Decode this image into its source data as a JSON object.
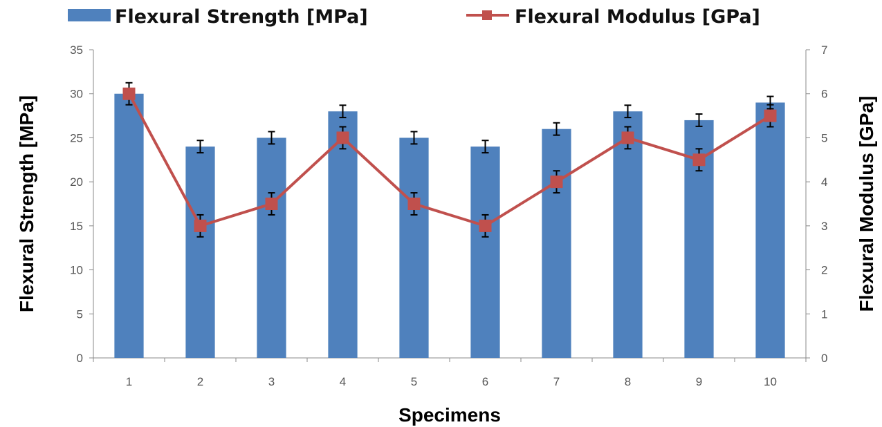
{
  "chart_data": {
    "type": "bar",
    "categories": [
      "1",
      "2",
      "3",
      "4",
      "5",
      "6",
      "7",
      "8",
      "9",
      "10"
    ],
    "series": [
      {
        "name": "Flexural Strength [MPa]",
        "type": "bar",
        "axis": "left",
        "color": "#4F81BD",
        "values": [
          30,
          24,
          25,
          28,
          25,
          24,
          26,
          28,
          27,
          29
        ],
        "error": [
          0,
          0.7,
          0.7,
          0.7,
          0.7,
          0.7,
          0.7,
          0.7,
          0.7,
          0.7
        ]
      },
      {
        "name": "Flexural Modulus [GPa]",
        "type": "line",
        "axis": "right",
        "color": "#C0504D",
        "values": [
          6,
          3,
          3.5,
          5,
          3.5,
          3,
          4,
          5,
          4.5,
          5.5
        ],
        "error": [
          0.25,
          0.25,
          0.25,
          0.25,
          0.25,
          0.25,
          0.25,
          0.25,
          0.25,
          0.25
        ]
      }
    ],
    "xlabel": "Specimens",
    "ylabel": "Flexural Strength [MPa]",
    "y2label": "Flexural Modulus [GPa]",
    "ylim": [
      0,
      35
    ],
    "y2lim": [
      0,
      7
    ],
    "yticks": [
      0,
      5,
      10,
      15,
      20,
      25,
      30,
      35
    ],
    "y2ticks": [
      0,
      1,
      2,
      3,
      4,
      5,
      6,
      7
    ],
    "grid": false,
    "legend": "top"
  }
}
